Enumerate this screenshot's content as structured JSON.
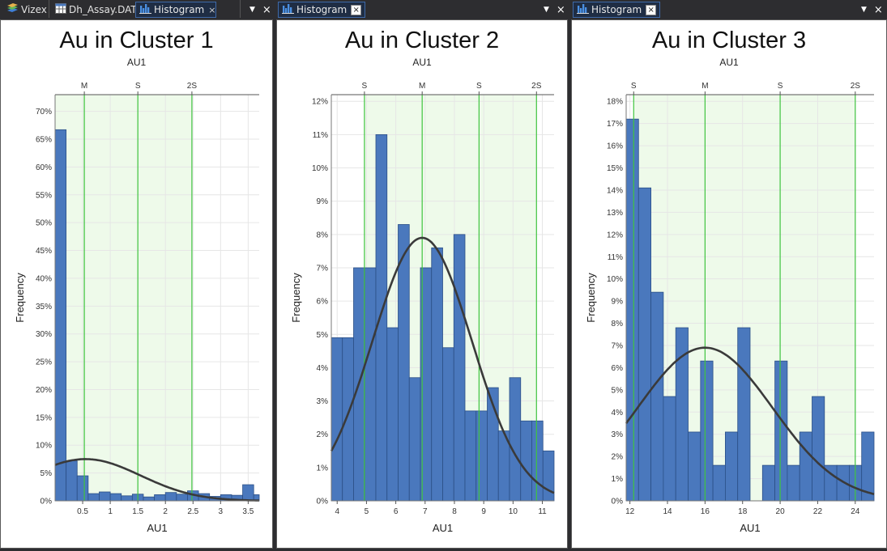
{
  "panels": [
    {
      "tabs": [
        {
          "label": "Vizex",
          "icon": "layers-icon",
          "active": false
        },
        {
          "label": "Dh_Assay.DAT",
          "icon": "table-icon",
          "active": false
        },
        {
          "label": "Histogram",
          "icon": "histogram-icon",
          "active": true,
          "close": "×"
        }
      ],
      "controls": {
        "dropdown": "▼",
        "close": "×"
      }
    },
    {
      "tabs": [
        {
          "label": "Histogram",
          "icon": "histogram-icon",
          "active": true,
          "close": "×"
        }
      ],
      "controls": {
        "dropdown": "▼",
        "close": "×"
      }
    },
    {
      "tabs": [
        {
          "label": "Histogram",
          "icon": "histogram-icon",
          "active": true,
          "close": "×"
        }
      ],
      "controls": {
        "dropdown": "▼",
        "close": "×"
      }
    }
  ],
  "chart_data": [
    {
      "type": "bar",
      "title": "Au in Cluster 1",
      "subtitle": "AU1",
      "xlabel": "AU1",
      "ylabel": "Frequency",
      "xlim": [
        0,
        3.7
      ],
      "ylim": [
        0,
        0.73
      ],
      "yticks": [
        0,
        0.05,
        0.1,
        0.15,
        0.2,
        0.25,
        0.3,
        0.35,
        0.4,
        0.45,
        0.5,
        0.55,
        0.6,
        0.65,
        0.7
      ],
      "xticks": [
        0.5,
        1,
        1.5,
        2,
        2.5,
        3,
        3.5
      ],
      "xtick_labels": [
        "0.5",
        "1",
        "1.5",
        "2",
        "2.5",
        "3",
        "3.5"
      ],
      "bin_start": 0,
      "bin_width": 0.2,
      "values": [
        0.667,
        0.072,
        0.045,
        0.013,
        0.016,
        0.013,
        0.009,
        0.012,
        0.007,
        0.011,
        0.015,
        0.012,
        0.018,
        0.013,
        0.008,
        0.011,
        0.01,
        0.029,
        0.011,
        0.011
      ],
      "stat_lines": [
        {
          "label": "M",
          "x": 0.53
        },
        {
          "label": "S",
          "x": 1.5
        },
        {
          "label": "2S",
          "x": 2.48
        }
      ],
      "shade": [
        0,
        2.48
      ],
      "curve": {
        "mean": 0.55,
        "sd": 1.0,
        "peak": 0.075
      }
    },
    {
      "type": "bar",
      "title": "Au in Cluster 2",
      "subtitle": "AU1",
      "xlabel": "AU1",
      "ylabel": "Frequency",
      "xlim": [
        3.8,
        11.4
      ],
      "ylim": [
        0,
        0.122
      ],
      "yticks": [
        0,
        0.01,
        0.02,
        0.03,
        0.04,
        0.05,
        0.06,
        0.07,
        0.08,
        0.09,
        0.1,
        0.11,
        0.12
      ],
      "xticks": [
        4,
        5,
        6,
        7,
        8,
        9,
        10,
        11
      ],
      "xtick_labels": [
        "4",
        "5",
        "6",
        "7",
        "8",
        "9",
        "10",
        "11"
      ],
      "bin_start": 3.8,
      "bin_width": 0.38,
      "values": [
        0.049,
        0.049,
        0.07,
        0.07,
        0.11,
        0.052,
        0.083,
        0.037,
        0.07,
        0.076,
        0.046,
        0.08,
        0.027,
        0.027,
        0.034,
        0.021,
        0.037,
        0.024,
        0.024,
        0.015
      ],
      "stat_lines": [
        {
          "label": "S",
          "x": 4.93
        },
        {
          "label": "M",
          "x": 6.9
        },
        {
          "label": "S",
          "x": 8.84
        },
        {
          "label": "2S",
          "x": 10.8
        }
      ],
      "shade": [
        4.93,
        10.8
      ],
      "curve": {
        "mean": 6.9,
        "sd": 1.7,
        "peak": 0.079
      }
    },
    {
      "type": "bar",
      "title": "Au in Cluster 3",
      "subtitle": "AU1",
      "xlabel": "AU1",
      "ylabel": "Frequency",
      "xlim": [
        11.8,
        25
      ],
      "ylim": [
        0,
        0.183
      ],
      "yticks": [
        0,
        0.01,
        0.02,
        0.03,
        0.04,
        0.05,
        0.06,
        0.07,
        0.08,
        0.09,
        0.1,
        0.11,
        0.12,
        0.13,
        0.14,
        0.15,
        0.16,
        0.17,
        0.18
      ],
      "xticks": [
        12,
        14,
        16,
        18,
        20,
        22,
        24
      ],
      "xtick_labels": [
        "12",
        "14",
        "16",
        "18",
        "20",
        "22",
        "24"
      ],
      "bin_start": 11.8,
      "bin_width": 0.66,
      "values": [
        0.172,
        0.141,
        0.094,
        0.047,
        0.078,
        0.031,
        0.063,
        0.016,
        0.031,
        0.078,
        0,
        0.016,
        0.063,
        0.016,
        0.031,
        0.047,
        0.016,
        0.016,
        0.016,
        0.031
      ],
      "stat_lines": [
        {
          "label": "S",
          "x": 12.2
        },
        {
          "label": "M",
          "x": 16.0
        },
        {
          "label": "S",
          "x": 20.0
        },
        {
          "label": "2S",
          "x": 24.0
        }
      ],
      "shade": [
        12.2,
        24.0
      ],
      "curve": {
        "mean": 16.0,
        "sd": 3.6,
        "peak": 0.069
      }
    }
  ],
  "colors": {
    "bar": "#4a78bd",
    "bar_stroke": "#2b4f86",
    "shade": "#eefaea",
    "stat_line": "#3fc43f",
    "curve": "#3a3a3a",
    "grid": "#e6e6e6"
  }
}
